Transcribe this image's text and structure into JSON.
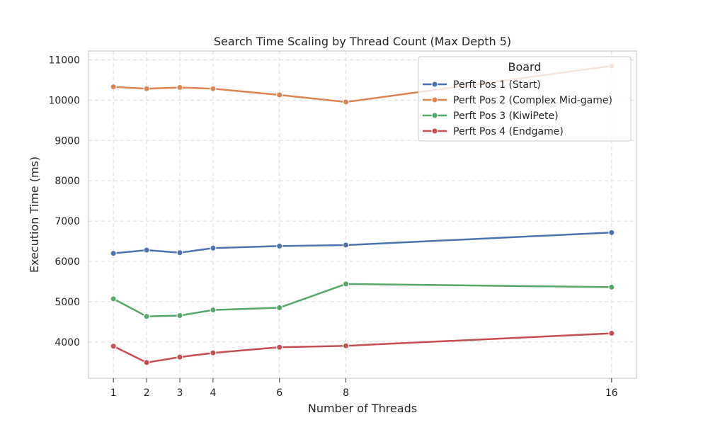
{
  "chart_data": {
    "type": "line",
    "title": "Search Time Scaling by Thread Count (Max Depth 5)",
    "xlabel": "Number of Threads",
    "ylabel": "Execution Time (ms)",
    "x": [
      1,
      2,
      3,
      4,
      6,
      8,
      16
    ],
    "x_ticks": [
      "1",
      "2",
      "3",
      "4",
      "6",
      "8",
      "16"
    ],
    "xlim": [
      0.25,
      16.75
    ],
    "y_ticks": [
      4000,
      5000,
      6000,
      7000,
      8000,
      9000,
      10000,
      11000
    ],
    "ylim": [
      3100,
      11220
    ],
    "grid": true,
    "legend": {
      "title": "Board",
      "placement": "top-right"
    },
    "series": [
      {
        "name": "Perft Pos 1 (Start)",
        "color": "#4c72b0",
        "values": [
          6200,
          6280,
          6215,
          6330,
          6380,
          6405,
          6715
        ]
      },
      {
        "name": "Perft Pos 2 (Complex Mid-game)",
        "color": "#dd8452",
        "values": [
          10330,
          10285,
          10315,
          10285,
          10130,
          9955,
          10850
        ]
      },
      {
        "name": "Perft Pos 3 (KiwiPete)",
        "color": "#55a868",
        "values": [
          5070,
          4635,
          4655,
          4795,
          4850,
          5440,
          5360
        ]
      },
      {
        "name": "Perft Pos 4 (Endgame)",
        "color": "#c44e52",
        "values": [
          3895,
          3490,
          3625,
          3730,
          3870,
          3905,
          4215
        ]
      }
    ]
  }
}
